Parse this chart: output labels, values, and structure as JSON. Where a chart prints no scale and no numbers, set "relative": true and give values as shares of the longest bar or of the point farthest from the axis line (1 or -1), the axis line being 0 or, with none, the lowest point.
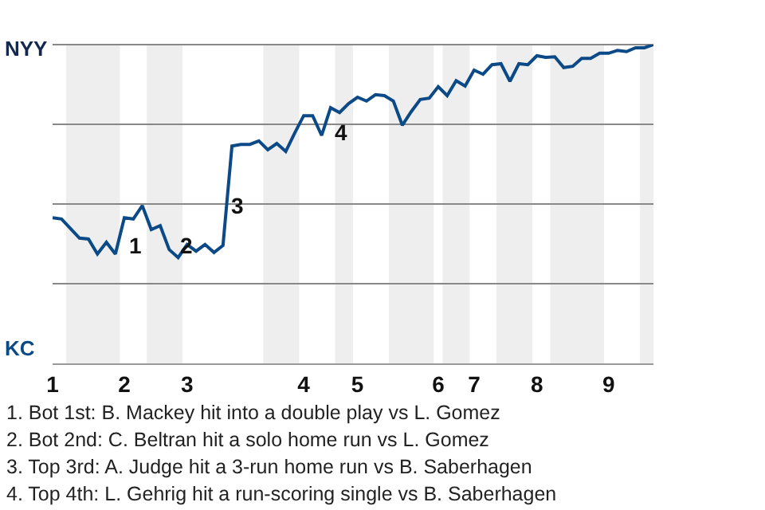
{
  "chart_data": {
    "type": "line",
    "relative": true,
    "categories": [
      "1",
      null,
      null,
      null,
      null,
      null,
      null,
      null,
      "2",
      null,
      null,
      null,
      null,
      null,
      null,
      "3",
      null,
      null,
      null,
      null,
      null,
      null,
      null,
      null,
      null,
      null,
      null,
      null,
      "4",
      null,
      null,
      null,
      null,
      null,
      "5",
      null,
      null,
      null,
      null,
      null,
      null,
      null,
      null,
      "6",
      null,
      null,
      null,
      "7",
      null,
      null,
      null,
      null,
      null,
      null,
      "8",
      null,
      null,
      null,
      null,
      null,
      null,
      null,
      "9",
      null,
      null,
      null,
      null,
      null
    ],
    "series": [
      {
        "color": "#0b4a86",
        "values": [
          0.457,
          0.453,
          0.423,
          0.393,
          0.39,
          0.343,
          0.38,
          0.343,
          0.457,
          0.453,
          0.495,
          0.42,
          0.432,
          0.357,
          0.332,
          0.373,
          0.352,
          0.373,
          0.348,
          0.37,
          0.682,
          0.687,
          0.687,
          0.698,
          0.67,
          0.69,
          0.665,
          0.723,
          0.777,
          0.777,
          0.715,
          0.802,
          0.787,
          0.815,
          0.835,
          0.823,
          0.843,
          0.84,
          0.823,
          0.747,
          0.79,
          0.828,
          0.832,
          0.868,
          0.84,
          0.887,
          0.87,
          0.92,
          0.907,
          0.937,
          0.94,
          0.885,
          0.94,
          0.937,
          0.965,
          0.96,
          0.962,
          0.928,
          0.932,
          0.957,
          0.957,
          0.973,
          0.973,
          0.982,
          0.978,
          0.99,
          0.99,
          1
        ]
      }
    ],
    "grid": "y",
    "marker": "none",
    "line_style": "solid",
    "legend": false,
    "annotations": [
      "NYY",
      "KC",
      "1",
      "2",
      "3",
      "4",
      "1. Bot 1st: B. Mackey hit into a double play vs L. Gomez",
      "2. Bot 2nd: C. Beltran hit a solo home run vs L. Gomez",
      "3. Top 3rd: A. Judge hit a 3-run home run vs B. Saberhagen",
      "4. Top 4th: L. Gehrig hit a run-scoring single vs B. Saberhagen"
    ]
  }
}
